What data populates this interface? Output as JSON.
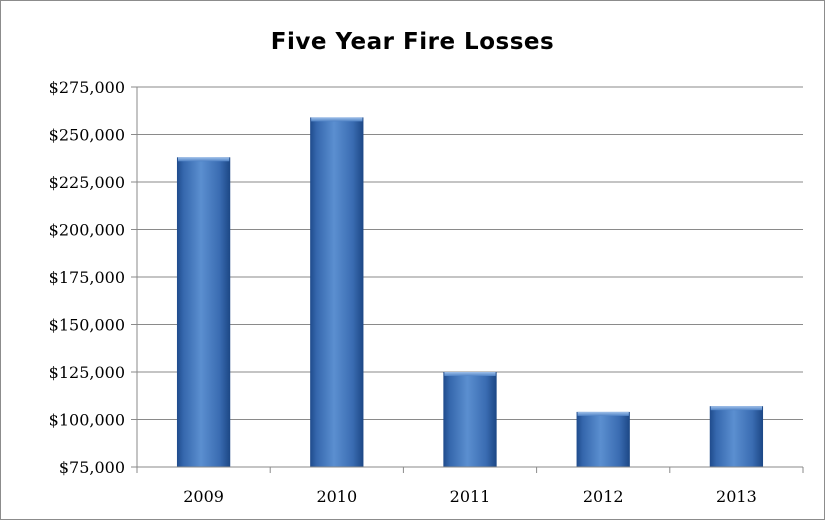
{
  "chart_data": {
    "type": "bar",
    "title": "Five Year Fire Losses",
    "xlabel": "",
    "ylabel": "",
    "categories": [
      "2009",
      "2010",
      "2011",
      "2012",
      "2013"
    ],
    "values": [
      238000,
      259000,
      125000,
      104000,
      107000
    ],
    "ylim": [
      75000,
      275000
    ],
    "yticks": [
      75000,
      100000,
      125000,
      150000,
      175000,
      200000,
      225000,
      250000,
      275000
    ],
    "ytick_labels": [
      "$75,000",
      "$100,000",
      "$125,000",
      "$150,000",
      "$175,000",
      "$200,000",
      "$225,000",
      "$250,000",
      "$275,000"
    ],
    "grid": true,
    "legend": "none",
    "bar_color": "#3f6fb3"
  }
}
